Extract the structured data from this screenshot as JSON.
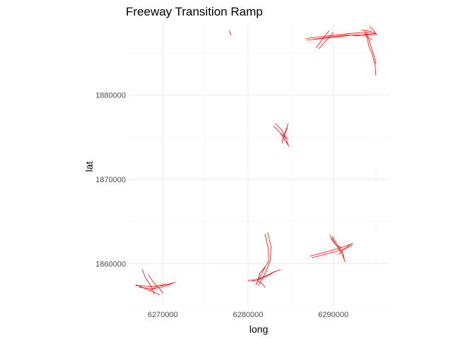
{
  "chart_data": {
    "type": "line",
    "title": "Freeway Transition Ramp",
    "xlabel": "long",
    "ylabel": "lat",
    "xlim": [
      6266000,
      6296500
    ],
    "ylim": [
      1855000,
      1888500
    ],
    "x_ticks": [
      6270000,
      6280000,
      6290000
    ],
    "x_tick_labels": [
      "6270000",
      "6280000",
      "6290000"
    ],
    "y_ticks": [
      1860000,
      1870000,
      1880000
    ],
    "y_tick_labels": [
      "1860000",
      "1870000",
      "1880000"
    ],
    "grid": true,
    "legend": "none",
    "line_color": "#ff0000",
    "series": [
      {
        "values": [
          [
            6266800,
            1857400
          ],
          [
            6268500,
            1857300
          ],
          [
            6270000,
            1857400
          ],
          [
            6271500,
            1857800
          ]
        ]
      },
      {
        "values": [
          [
            6267200,
            1857200
          ],
          [
            6268800,
            1857000
          ],
          [
            6270200,
            1857300
          ],
          [
            6271200,
            1857700
          ]
        ]
      },
      {
        "values": [
          [
            6267600,
            1859300
          ],
          [
            6268000,
            1858300
          ],
          [
            6268700,
            1857200
          ],
          [
            6269000,
            1856400
          ]
        ]
      },
      {
        "values": [
          [
            6268300,
            1858700
          ],
          [
            6268900,
            1857800
          ],
          [
            6269600,
            1857100
          ],
          [
            6270000,
            1856500
          ]
        ]
      },
      {
        "values": [
          [
            6266900,
            1857500
          ],
          [
            6267800,
            1857100
          ],
          [
            6268800,
            1856700
          ],
          [
            6269600,
            1856300
          ]
        ]
      },
      {
        "values": [
          [
            6268500,
            1856800
          ],
          [
            6269300,
            1857300
          ],
          [
            6270300,
            1857600
          ]
        ]
      },
      {
        "values": [
          [
            6277800,
            1887600
          ],
          [
            6278000,
            1887100
          ]
        ]
      },
      {
        "values": [
          [
            6280500,
            1857900
          ],
          [
            6281500,
            1858300
          ],
          [
            6282800,
            1858900
          ],
          [
            6283800,
            1859300
          ]
        ]
      },
      {
        "values": [
          [
            6280000,
            1858000
          ],
          [
            6281200,
            1858100
          ],
          [
            6282400,
            1858600
          ],
          [
            6283200,
            1859100
          ]
        ]
      },
      {
        "values": [
          [
            6280900,
            1857500
          ],
          [
            6281400,
            1858400
          ],
          [
            6281800,
            1859200
          ],
          [
            6282400,
            1860300
          ],
          [
            6282400,
            1861700
          ],
          [
            6282000,
            1863500
          ]
        ]
      },
      {
        "values": [
          [
            6281200,
            1857400
          ],
          [
            6281700,
            1858300
          ],
          [
            6282100,
            1859000
          ],
          [
            6282600,
            1860400
          ],
          [
            6282700,
            1862000
          ],
          [
            6282300,
            1863700
          ]
        ]
      },
      {
        "values": [
          [
            6281000,
            1857600
          ],
          [
            6281400,
            1858900
          ],
          [
            6282000,
            1859600
          ]
        ]
      },
      {
        "values": [
          [
            6281200,
            1857900
          ],
          [
            6281700,
            1857600
          ],
          [
            6282000,
            1857200
          ]
        ]
      },
      {
        "values": [
          [
            6283000,
            1876300
          ],
          [
            6283700,
            1875600
          ],
          [
            6284300,
            1874700
          ],
          [
            6284800,
            1873900
          ]
        ]
      },
      {
        "values": [
          [
            6283200,
            1876600
          ],
          [
            6283900,
            1875900
          ],
          [
            6284400,
            1875000
          ],
          [
            6284700,
            1874100
          ]
        ]
      },
      {
        "values": [
          [
            6284700,
            1876600
          ],
          [
            6284400,
            1875700
          ],
          [
            6284100,
            1875000
          ],
          [
            6284000,
            1874300
          ]
        ]
      },
      {
        "values": [
          [
            6284600,
            1876100
          ],
          [
            6284300,
            1875300
          ],
          [
            6284200,
            1874600
          ]
        ]
      },
      {
        "values": [
          [
            6283900,
            1875400
          ],
          [
            6284400,
            1875000
          ],
          [
            6284700,
            1874800
          ]
        ]
      },
      {
        "values": [
          [
            6287300,
            1860900
          ],
          [
            6288800,
            1861300
          ],
          [
            6290200,
            1861700
          ],
          [
            6291500,
            1862100
          ],
          [
            6292300,
            1862400
          ]
        ]
      },
      {
        "values": [
          [
            6287500,
            1860700
          ],
          [
            6289000,
            1861100
          ],
          [
            6290500,
            1861500
          ],
          [
            6291700,
            1861900
          ],
          [
            6292200,
            1862200
          ]
        ]
      },
      {
        "values": [
          [
            6289600,
            1863400
          ],
          [
            6290200,
            1862400
          ],
          [
            6290900,
            1861400
          ],
          [
            6291400,
            1860200
          ]
        ]
      },
      {
        "values": [
          [
            6289900,
            1863200
          ],
          [
            6290500,
            1862200
          ],
          [
            6291100,
            1861300
          ],
          [
            6291300,
            1860400
          ]
        ]
      },
      {
        "values": [
          [
            6289700,
            1863000
          ],
          [
            6290400,
            1862100
          ],
          [
            6291000,
            1861900
          ]
        ]
      },
      {
        "values": [
          [
            6290600,
            1861100
          ],
          [
            6291300,
            1861700
          ],
          [
            6292000,
            1862300
          ]
        ]
      },
      {
        "values": [
          [
            6286800,
            1886700
          ],
          [
            6288500,
            1886900
          ],
          [
            6290300,
            1887100
          ],
          [
            6292000,
            1887300
          ],
          [
            6293500,
            1887400
          ],
          [
            6294800,
            1887400
          ]
        ]
      },
      {
        "values": [
          [
            6286900,
            1886500
          ],
          [
            6288700,
            1886700
          ],
          [
            6290500,
            1886900
          ],
          [
            6292300,
            1887100
          ],
          [
            6293800,
            1887200
          ],
          [
            6295100,
            1887200
          ]
        ]
      },
      {
        "values": [
          [
            6287700,
            1886600
          ],
          [
            6289700,
            1886900
          ],
          [
            6291600,
            1887100
          ],
          [
            6293400,
            1887000
          ],
          [
            6294900,
            1887300
          ]
        ]
      },
      {
        "values": [
          [
            6288000,
            1885600
          ],
          [
            6288500,
            1886300
          ],
          [
            6289000,
            1887000
          ],
          [
            6289500,
            1887600
          ]
        ]
      },
      {
        "values": [
          [
            6288300,
            1885500
          ],
          [
            6288900,
            1886200
          ],
          [
            6289500,
            1886800
          ],
          [
            6290000,
            1887400
          ]
        ]
      },
      {
        "values": [
          [
            6293700,
            1887600
          ],
          [
            6294000,
            1886600
          ],
          [
            6294200,
            1885700
          ],
          [
            6294600,
            1884700
          ],
          [
            6294900,
            1883500
          ],
          [
            6295000,
            1882300
          ]
        ]
      },
      {
        "values": [
          [
            6293900,
            1887400
          ],
          [
            6294200,
            1886500
          ],
          [
            6294500,
            1885500
          ],
          [
            6294800,
            1884600
          ],
          [
            6295000,
            1883700
          ]
        ]
      },
      {
        "values": [
          [
            6294300,
            1888100
          ],
          [
            6294700,
            1887700
          ],
          [
            6294900,
            1887400
          ],
          [
            6295100,
            1887100
          ]
        ]
      },
      {
        "values": [
          [
            6293300,
            1887700
          ],
          [
            6294000,
            1887600
          ],
          [
            6294500,
            1887500
          ]
        ]
      },
      {
        "values": [
          [
            6293600,
            1887200
          ],
          [
            6294100,
            1886800
          ],
          [
            6294500,
            1886600
          ]
        ]
      }
    ]
  }
}
